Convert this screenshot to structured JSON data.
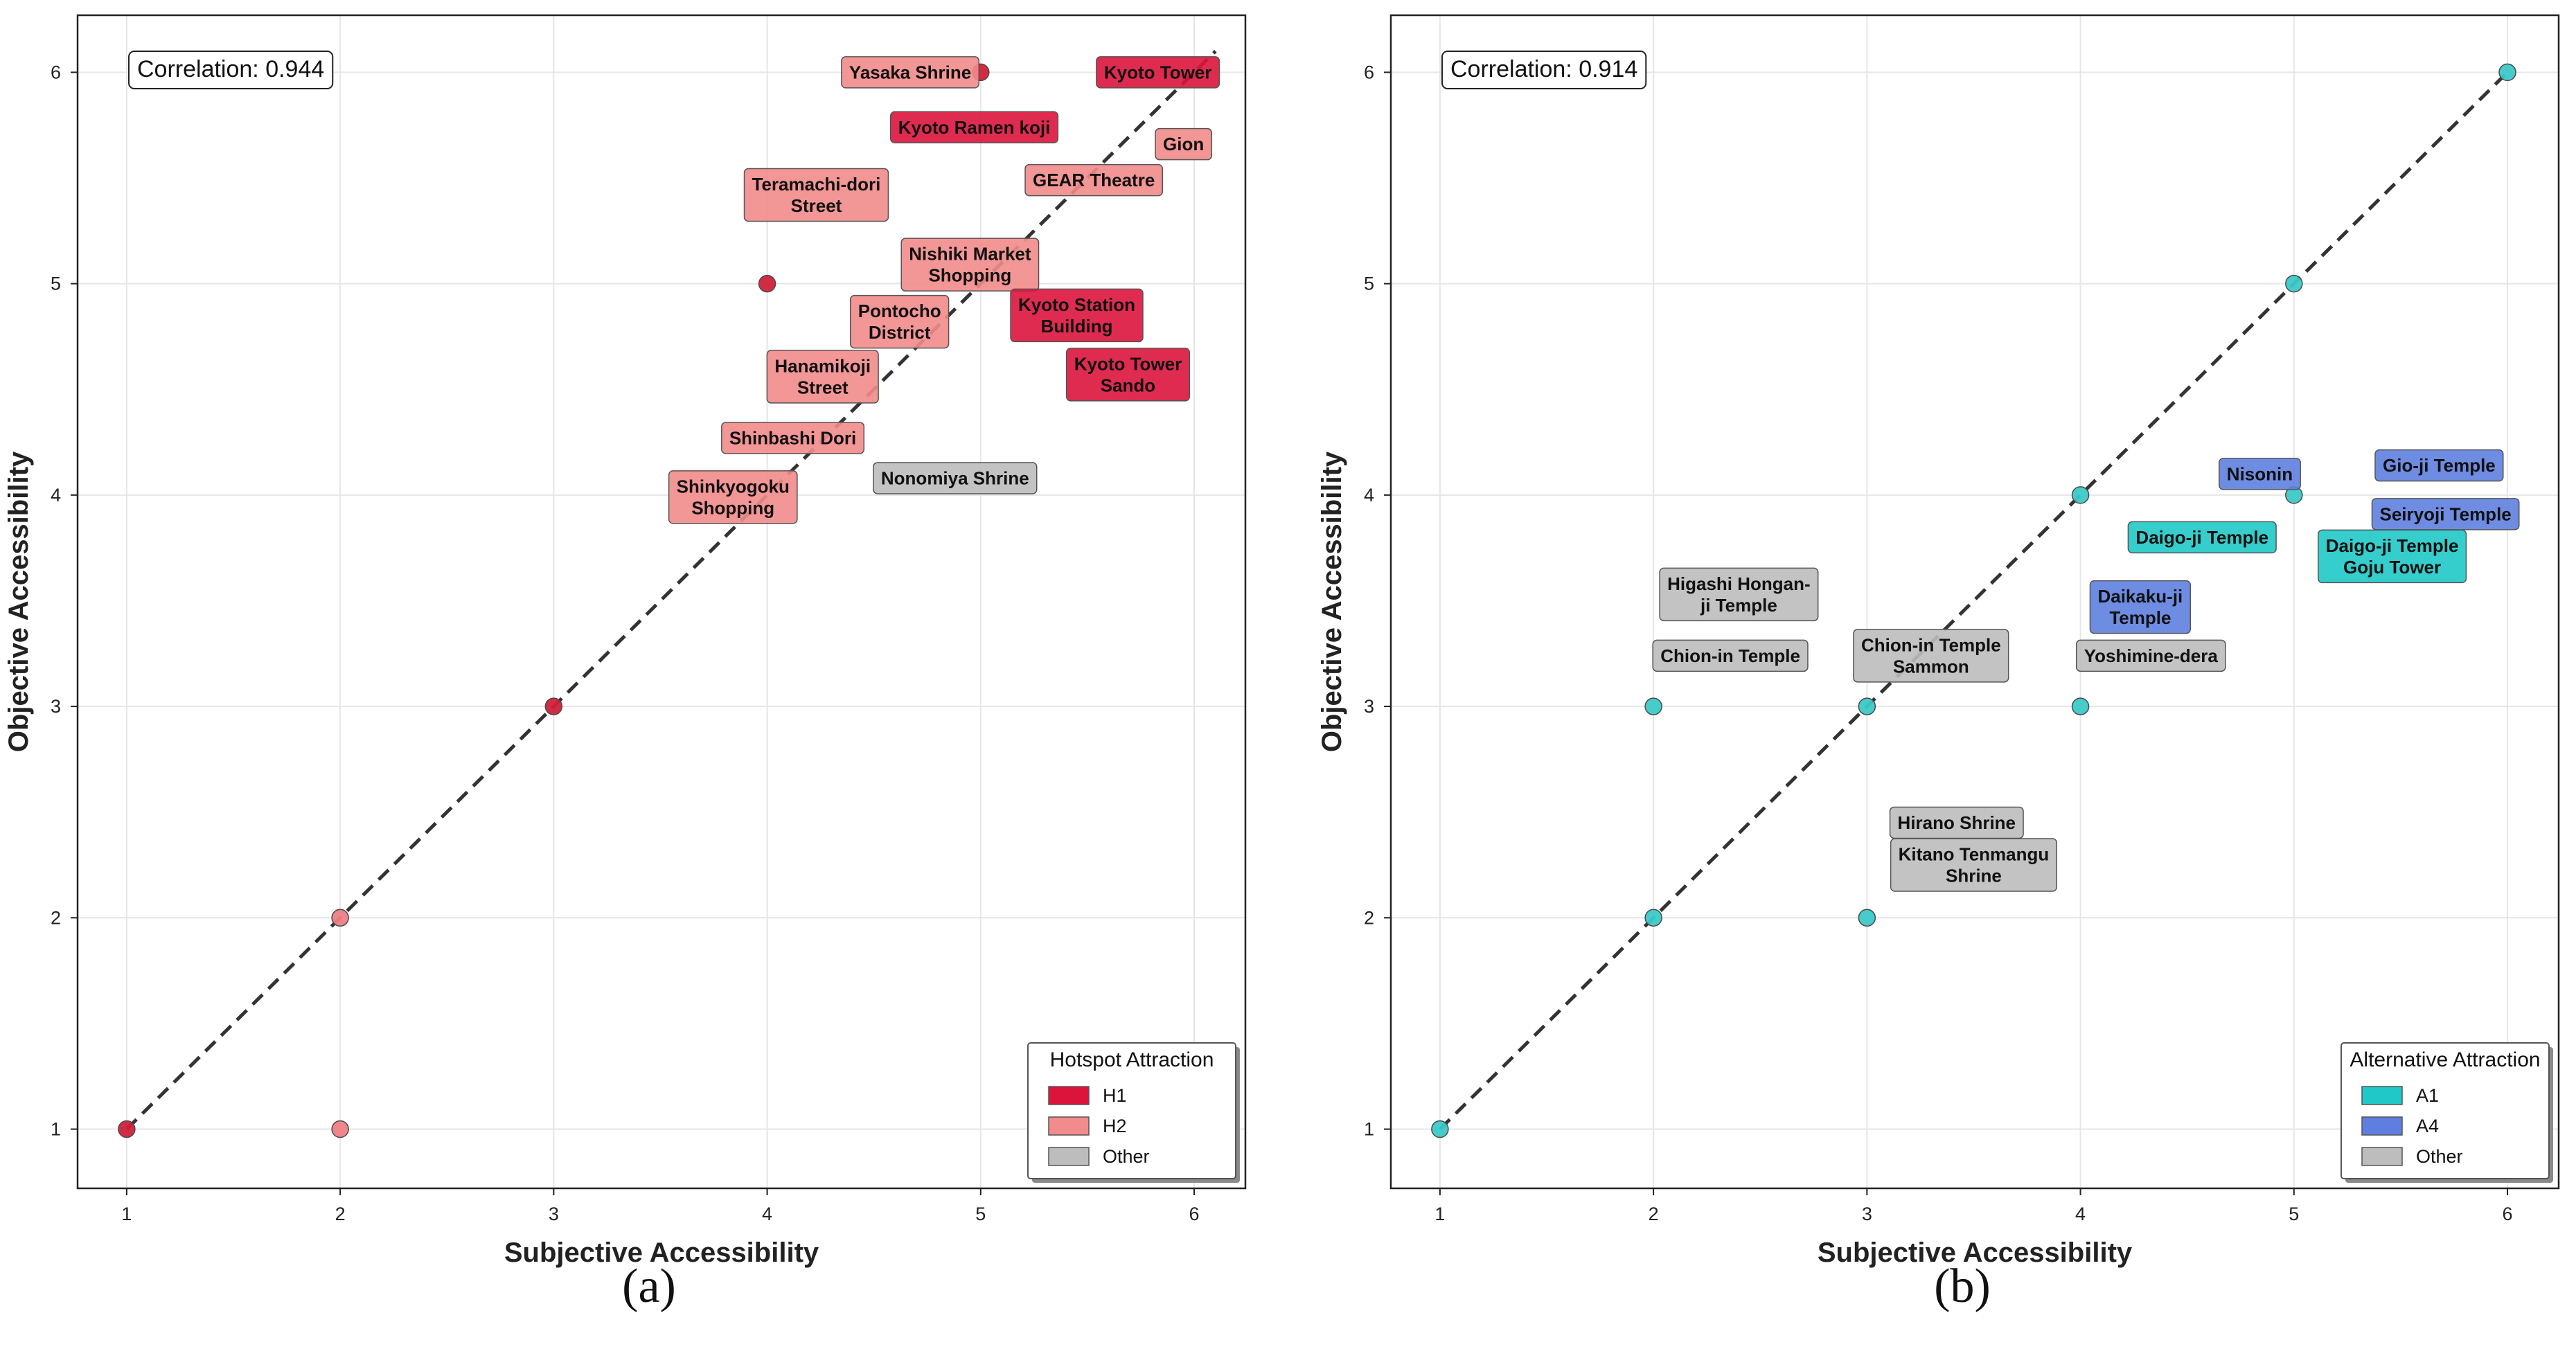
{
  "colors": {
    "H1": "#dc143c",
    "H2": "#f28b8b",
    "A1": "#20c8c8",
    "A4": "#5f7fe0",
    "Other": "#bdbdbd",
    "point_a_dark": "#d0213a",
    "point_a_light": "#ee7f86",
    "point_b": "#3cc9c8"
  },
  "chart_data": [
    {
      "type": "scatter",
      "panel_label": "(a)",
      "xlabel": "Subjective Accessibility",
      "ylabel": "Objective Accessibility",
      "xlim": [
        0.77,
        6.24
      ],
      "ylim": [
        0.72,
        6.27
      ],
      "xticks": [
        "1",
        "2",
        "3",
        "4",
        "5",
        "6"
      ],
      "yticks": [
        "1",
        "2",
        "3",
        "4",
        "5",
        "6"
      ],
      "grid": true,
      "correlation_label": "Correlation: 0.944",
      "diagonal": [
        [
          1,
          1
        ],
        [
          6.1,
          6.1
        ]
      ],
      "points": [
        {
          "x": 1,
          "y": 1,
          "tone": "dark"
        },
        {
          "x": 2,
          "y": 2,
          "tone": "light"
        },
        {
          "x": 2,
          "y": 1,
          "tone": "light"
        },
        {
          "x": 3,
          "y": 3,
          "tone": "dark"
        },
        {
          "x": 4,
          "y": 5,
          "tone": "dark"
        },
        {
          "x": 5,
          "y": 6,
          "tone": "dark"
        }
      ],
      "annotations": [
        {
          "lines": [
            "Yasaka Shrine"
          ],
          "category": "H2",
          "x": 4.67,
          "y": 6.0
        },
        {
          "lines": [
            "Kyoto Tower"
          ],
          "category": "H1",
          "x": 5.83,
          "y": 6.0
        },
        {
          "lines": [
            "Kyoto Ramen koji"
          ],
          "category": "H1",
          "x": 4.97,
          "y": 5.74
        },
        {
          "lines": [
            "Gion"
          ],
          "category": "H2",
          "x": 5.95,
          "y": 5.66
        },
        {
          "lines": [
            "GEAR Theatre"
          ],
          "category": "H2",
          "x": 5.53,
          "y": 5.49
        },
        {
          "lines": [
            "Teramachi-dori",
            "Street"
          ],
          "category": "H2",
          "x": 4.23,
          "y": 5.42
        },
        {
          "lines": [
            "Nishiki Market",
            "Shopping"
          ],
          "category": "H2",
          "x": 4.95,
          "y": 5.09
        },
        {
          "lines": [
            "Pontocho",
            "District"
          ],
          "category": "H2",
          "x": 4.62,
          "y": 4.82
        },
        {
          "lines": [
            "Kyoto Station",
            "Building"
          ],
          "category": "H1",
          "x": 5.45,
          "y": 4.85
        },
        {
          "lines": [
            "Hanamikoji",
            "Street"
          ],
          "category": "H2",
          "x": 4.26,
          "y": 4.56
        },
        {
          "lines": [
            "Kyoto Tower",
            "Sando"
          ],
          "category": "H1",
          "x": 5.69,
          "y": 4.57
        },
        {
          "lines": [
            "Shinbashi Dori"
          ],
          "category": "H2",
          "x": 4.12,
          "y": 4.27
        },
        {
          "lines": [
            "Nonomiya Shrine"
          ],
          "category": "Other",
          "x": 4.88,
          "y": 4.08
        },
        {
          "lines": [
            "Shinkyogoku",
            "Shopping"
          ],
          "category": "H2",
          "x": 3.84,
          "y": 3.99
        }
      ],
      "legend": {
        "title": "Hotspot Attraction",
        "position": "lower right",
        "entries": [
          {
            "label": "H1",
            "category": "H1"
          },
          {
            "label": "H2",
            "category": "H2"
          },
          {
            "label": "Other",
            "category": "Other"
          }
        ]
      }
    },
    {
      "type": "scatter",
      "panel_label": "(b)",
      "xlabel": "Subjective Accessibility",
      "ylabel": "Objective Accessibility",
      "xlim": [
        0.77,
        6.24
      ],
      "ylim": [
        0.72,
        6.27
      ],
      "xticks": [
        "1",
        "2",
        "3",
        "4",
        "5",
        "6"
      ],
      "yticks": [
        "1",
        "2",
        "3",
        "4",
        "5",
        "6"
      ],
      "grid": true,
      "correlation_label": "Correlation: 0.914",
      "diagonal": [
        [
          1,
          1
        ],
        [
          6,
          6
        ]
      ],
      "points": [
        {
          "x": 1,
          "y": 1
        },
        {
          "x": 2,
          "y": 2
        },
        {
          "x": 2,
          "y": 3
        },
        {
          "x": 3,
          "y": 3
        },
        {
          "x": 3,
          "y": 2
        },
        {
          "x": 4,
          "y": 4
        },
        {
          "x": 4,
          "y": 3
        },
        {
          "x": 5,
          "y": 5
        },
        {
          "x": 5,
          "y": 4
        },
        {
          "x": 6,
          "y": 6
        }
      ],
      "annotations": [
        {
          "lines": [
            "Nisonin"
          ],
          "category": "A4",
          "x": 4.84,
          "y": 4.1
        },
        {
          "lines": [
            "Gio-ji Temple"
          ],
          "category": "A4",
          "x": 5.68,
          "y": 4.14
        },
        {
          "lines": [
            "Seiryoji Temple"
          ],
          "category": "A4",
          "x": 5.71,
          "y": 3.91
        },
        {
          "lines": [
            "Daigo-ji Temple"
          ],
          "category": "A1",
          "x": 4.57,
          "y": 3.8
        },
        {
          "lines": [
            "Daigo-ji Temple",
            "Goju Tower"
          ],
          "category": "A1",
          "x": 5.46,
          "y": 3.71
        },
        {
          "lines": [
            "Higashi Hongan-",
            "ji Temple"
          ],
          "category": "Other",
          "x": 2.4,
          "y": 3.53
        },
        {
          "lines": [
            "Daikaku-ji",
            "Temple"
          ],
          "category": "A4",
          "x": 4.28,
          "y": 3.47
        },
        {
          "lines": [
            "Chion-in Temple"
          ],
          "category": "Other",
          "x": 2.36,
          "y": 3.24
        },
        {
          "lines": [
            "Chion-in Temple",
            "Sammon"
          ],
          "category": "Other",
          "x": 3.3,
          "y": 3.24
        },
        {
          "lines": [
            "Yoshimine-dera"
          ],
          "category": "Other",
          "x": 4.33,
          "y": 3.24
        },
        {
          "lines": [
            "Hirano Shrine"
          ],
          "category": "Other",
          "x": 3.42,
          "y": 2.45
        },
        {
          "lines": [
            "Kitano Tenmangu",
            "Shrine"
          ],
          "category": "Other",
          "x": 3.5,
          "y": 2.25
        }
      ],
      "legend": {
        "title": "Alternative Attraction",
        "position": "lower right",
        "entries": [
          {
            "label": "A1",
            "category": "A1"
          },
          {
            "label": "A4",
            "category": "A4"
          },
          {
            "label": "Other",
            "category": "Other"
          }
        ]
      }
    }
  ]
}
